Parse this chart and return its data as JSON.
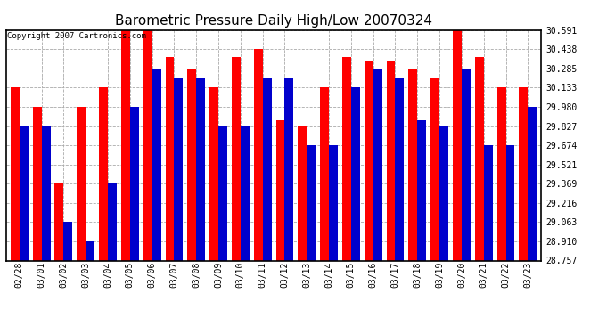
{
  "title": "Barometric Pressure Daily High/Low 20070324",
  "copyright": "Copyright 2007 Cartronics.com",
  "dates": [
    "02/28",
    "03/01",
    "03/02",
    "03/03",
    "03/04",
    "03/05",
    "03/06",
    "03/07",
    "03/08",
    "03/09",
    "03/10",
    "03/11",
    "03/12",
    "03/13",
    "03/14",
    "03/15",
    "03/16",
    "03/17",
    "03/18",
    "03/19",
    "03/20",
    "03/21",
    "03/22",
    "03/23"
  ],
  "highs": [
    30.133,
    29.98,
    29.369,
    29.98,
    30.133,
    30.591,
    30.591,
    30.38,
    30.285,
    30.133,
    30.38,
    30.438,
    29.87,
    29.827,
    30.133,
    30.38,
    30.35,
    30.35,
    30.285,
    30.21,
    30.591,
    30.38,
    30.133,
    30.133
  ],
  "lows": [
    29.827,
    29.827,
    29.063,
    28.91,
    29.369,
    29.98,
    30.285,
    30.21,
    30.21,
    29.827,
    29.827,
    30.21,
    30.21,
    29.674,
    29.674,
    30.133,
    30.285,
    30.21,
    29.87,
    29.827,
    30.285,
    29.674,
    29.674,
    29.98
  ],
  "ymin": 28.757,
  "ymax": 30.591,
  "yticks": [
    30.591,
    30.438,
    30.285,
    30.133,
    29.98,
    29.827,
    29.674,
    29.521,
    29.369,
    29.216,
    29.063,
    28.91,
    28.757
  ],
  "bar_width": 0.4,
  "high_color": "#ff0000",
  "low_color": "#0000cc",
  "bg_color": "#ffffff",
  "grid_color": "#aaaaaa",
  "title_fontsize": 11,
  "tick_fontsize": 7,
  "copyright_fontsize": 6.5
}
